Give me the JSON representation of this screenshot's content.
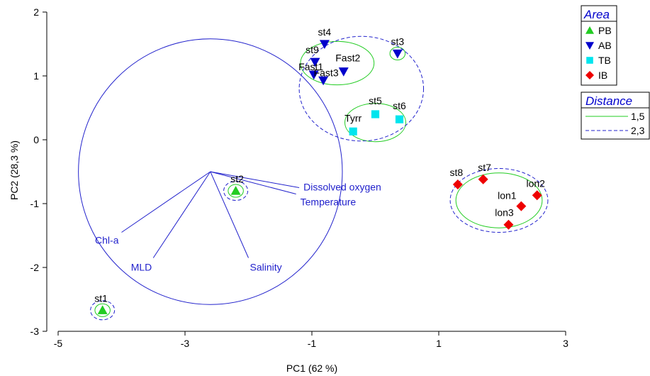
{
  "chart_data": {
    "type": "scatter",
    "xlabel": "PC1 (62 %)",
    "ylabel": "PC2 (28,3 %)",
    "xlim": [
      -5,
      3
    ],
    "ylim": [
      -3,
      2
    ],
    "xticks": [
      -5,
      -3,
      -1,
      1,
      3
    ],
    "yticks": [
      -3,
      -2,
      -1,
      0,
      1,
      2
    ],
    "grid": false,
    "colors": {
      "PB": "#22cc22",
      "AB": "#0000cc",
      "TB": "#00e5ee",
      "IB": "#ee0000",
      "vector": "#2222cc",
      "distance_a": "#22cc22",
      "distance_b": "#2222cc"
    },
    "legend_area": {
      "title": "Area",
      "entries": [
        {
          "label": "PB",
          "marker": "triangle-up",
          "color": "#22cc22"
        },
        {
          "label": "AB",
          "marker": "triangle-down",
          "color": "#0000cc"
        },
        {
          "label": "TB",
          "marker": "square",
          "color": "#00e5ee"
        },
        {
          "label": "IB",
          "marker": "diamond",
          "color": "#ee0000"
        }
      ]
    },
    "legend_distance": {
      "title": "Distance",
      "entries": [
        {
          "label": "1,5",
          "style": "solid",
          "color": "#22cc22"
        },
        {
          "label": "2,3",
          "style": "dashed",
          "color": "#2222cc"
        }
      ]
    },
    "series": [
      {
        "name": "PB",
        "points": [
          {
            "label": "st1",
            "x": -4.3,
            "y": -2.67
          },
          {
            "label": "st2",
            "x": -2.2,
            "y": -0.8
          }
        ]
      },
      {
        "name": "AB",
        "points": [
          {
            "label": "st4",
            "x": -0.8,
            "y": 1.5
          },
          {
            "label": "st9",
            "x": -0.95,
            "y": 1.22
          },
          {
            "label": "Fast1",
            "x": -0.97,
            "y": 1.02
          },
          {
            "label": "Fast3",
            "x": -0.82,
            "y": 0.93
          },
          {
            "label": "Fast2",
            "x": -0.5,
            "y": 1.07
          },
          {
            "label": "st3",
            "x": 0.35,
            "y": 1.35
          }
        ]
      },
      {
        "name": "TB",
        "points": [
          {
            "label": "Tyrr",
            "x": -0.35,
            "y": 0.13
          },
          {
            "label": "st5",
            "x": 0.0,
            "y": 0.4
          },
          {
            "label": "st6",
            "x": 0.38,
            "y": 0.32
          }
        ]
      },
      {
        "name": "IB",
        "points": [
          {
            "label": "st8",
            "x": 1.3,
            "y": -0.7
          },
          {
            "label": "st7",
            "x": 1.7,
            "y": -0.62
          },
          {
            "label": "lon2",
            "x": 2.55,
            "y": -0.87
          },
          {
            "label": "lon1",
            "x": 2.3,
            "y": -1.04
          },
          {
            "label": "lon3",
            "x": 2.1,
            "y": -1.33
          }
        ]
      }
    ],
    "vectors": {
      "origin": [
        -2.6,
        -0.5
      ],
      "items": [
        {
          "label": "Dissolved oxygen",
          "x": -1.2,
          "y": -0.75
        },
        {
          "label": "Temperature",
          "x": -1.25,
          "y": -0.85
        },
        {
          "label": "Chl-a",
          "x": -4.0,
          "y": -1.45
        },
        {
          "label": "MLD",
          "x": -3.5,
          "y": -1.85
        },
        {
          "label": "Salinity",
          "x": -2.0,
          "y": -1.85
        }
      ],
      "circle_radius": 2.08
    },
    "distance_contours": [
      {
        "level": "1,5",
        "style": "solid",
        "cx": -0.6,
        "cy": 1.2,
        "rx": 0.58,
        "ry": 0.34
      },
      {
        "level": "1,5",
        "style": "solid",
        "cx": 0.35,
        "cy": 1.35,
        "rx": 0.12,
        "ry": 0.1
      },
      {
        "level": "1,5",
        "style": "solid",
        "cx": 0.0,
        "cy": 0.27,
        "rx": 0.48,
        "ry": 0.3
      },
      {
        "level": "1,5",
        "style": "solid",
        "cx": 1.95,
        "cy": -0.95,
        "rx": 0.68,
        "ry": 0.43
      },
      {
        "level": "1,5",
        "style": "solid",
        "cx": -2.2,
        "cy": -0.8,
        "rx": 0.12,
        "ry": 0.1
      },
      {
        "level": "1,5",
        "style": "solid",
        "cx": -4.3,
        "cy": -2.67,
        "rx": 0.12,
        "ry": 0.1
      },
      {
        "level": "2,3",
        "style": "dashed",
        "cx": -0.22,
        "cy": 0.8,
        "rx": 0.98,
        "ry": 0.82
      },
      {
        "level": "2,3",
        "style": "dashed",
        "cx": 1.95,
        "cy": -0.95,
        "rx": 0.77,
        "ry": 0.5
      },
      {
        "level": "2,3",
        "style": "dashed",
        "cx": -2.2,
        "cy": -0.8,
        "rx": 0.19,
        "ry": 0.15
      },
      {
        "level": "2,3",
        "style": "dashed",
        "cx": -4.3,
        "cy": -2.67,
        "rx": 0.19,
        "ry": 0.15
      }
    ]
  }
}
